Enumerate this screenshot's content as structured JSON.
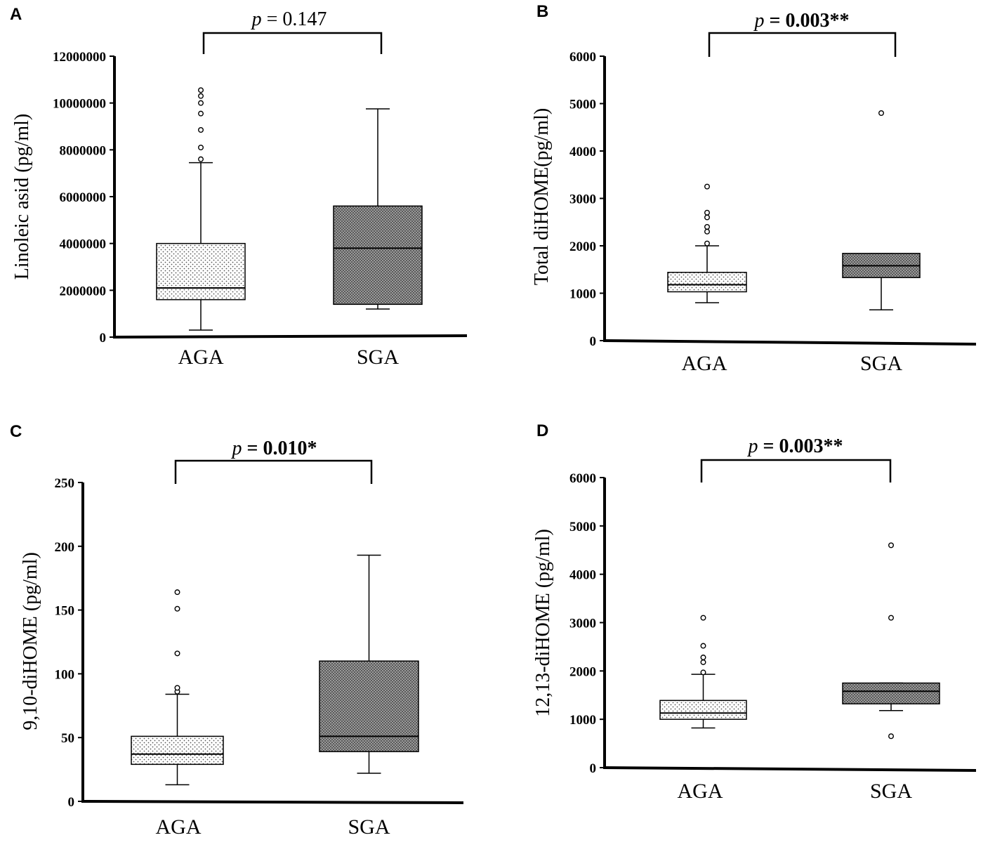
{
  "chart_data": [
    {
      "panel": "A",
      "type": "box",
      "ylabel": "Linoleic asid (pg/ml)",
      "ylim": [
        0,
        12000000
      ],
      "yticks": [
        0,
        2000000,
        4000000,
        6000000,
        8000000,
        10000000,
        12000000
      ],
      "ytick_labels": [
        "0",
        "2000000",
        "4000000",
        "6000000",
        "8000000",
        "10000000",
        "12000000"
      ],
      "categories": [
        "AGA",
        "SGA"
      ],
      "p_value": {
        "prefix": "p",
        "text": " = 0.147",
        "bold": false
      },
      "boxes": [
        {
          "name": "AGA",
          "pattern": "dots-light",
          "min": 300000,
          "q1": 1600000,
          "median": 2100000,
          "q3": 4000000,
          "max": 7450000,
          "outliers": [
            7600000,
            8100000,
            8850000,
            9550000,
            10000000,
            10300000,
            10550000
          ]
        },
        {
          "name": "SGA",
          "pattern": "checker-dark",
          "min": 1200000,
          "q1": 1400000,
          "median": 3800000,
          "q3": 5600000,
          "max": 9750000,
          "outliers": []
        }
      ]
    },
    {
      "panel": "B",
      "type": "box",
      "ylabel": "Total diHOME(pg/ml)",
      "ylim": [
        0,
        6000
      ],
      "yticks": [
        0,
        1000,
        2000,
        3000,
        4000,
        5000,
        6000
      ],
      "ytick_labels": [
        "0",
        "1000",
        "2000",
        "3000",
        "4000",
        "5000",
        "6000"
      ],
      "categories": [
        "AGA",
        "SGA"
      ],
      "p_value": {
        "prefix": "p",
        "text": " = 0.003**",
        "bold": true
      },
      "boxes": [
        {
          "name": "AGA",
          "pattern": "dots-light",
          "min": 800.0,
          "q1": 1030,
          "median": 1180,
          "q3": 1440,
          "max": 2000,
          "outliers": [
            2050,
            2300,
            2400,
            2600,
            2700,
            3250
          ]
        },
        {
          "name": "SGA",
          "pattern": "checker-dark",
          "min": 650,
          "q1": 1330,
          "median": 1580,
          "q3": 1840,
          "max": 1840,
          "outliers": [
            4800
          ]
        }
      ]
    },
    {
      "panel": "C",
      "type": "box",
      "ylabel": "9,10-diHOME (pg/ml)",
      "ylim": [
        0,
        250
      ],
      "yticks": [
        0,
        50,
        100,
        150,
        200,
        250
      ],
      "ytick_labels": [
        "0",
        "50",
        "100",
        "150",
        "200",
        "250"
      ],
      "categories": [
        "AGA",
        "SGA"
      ],
      "p_value": {
        "prefix": "p",
        "text": " = 0.010*",
        "bold": true
      },
      "boxes": [
        {
          "name": "AGA",
          "pattern": "dots-light",
          "min": 13,
          "q1": 29,
          "median": 37,
          "q3": 51,
          "max": 84,
          "outliers": [
            86,
            89,
            116,
            151,
            164
          ]
        },
        {
          "name": "SGA",
          "pattern": "checker-dark",
          "min": 22,
          "q1": 39,
          "median": 51,
          "q3": 110,
          "max": 193,
          "outliers": []
        }
      ]
    },
    {
      "panel": "D",
      "type": "box",
      "ylabel": "12,13-diHOME (pg/ml)",
      "ylim": [
        0,
        6000
      ],
      "yticks": [
        0,
        1000,
        2000,
        3000,
        4000,
        5000,
        6000
      ],
      "ytick_labels": [
        "0",
        "1000",
        "2000",
        "3000",
        "4000",
        "5000",
        "6000"
      ],
      "categories": [
        "AGA",
        "SGA"
      ],
      "p_value": {
        "prefix": "p",
        "text": " = 0.003**",
        "bold": true
      },
      "boxes": [
        {
          "name": "AGA",
          "pattern": "dots-light",
          "min": 820,
          "q1": 1000,
          "median": 1130,
          "q3": 1390,
          "max": 1930,
          "outliers": [
            1970,
            2180,
            2280,
            2520,
            3100
          ]
        },
        {
          "name": "SGA",
          "pattern": "checker-dark",
          "min": 1180,
          "q1": 1320,
          "median": 1580,
          "q3": 1750,
          "max": 1750,
          "outliers": [
            650,
            3100,
            4600
          ]
        }
      ]
    }
  ]
}
